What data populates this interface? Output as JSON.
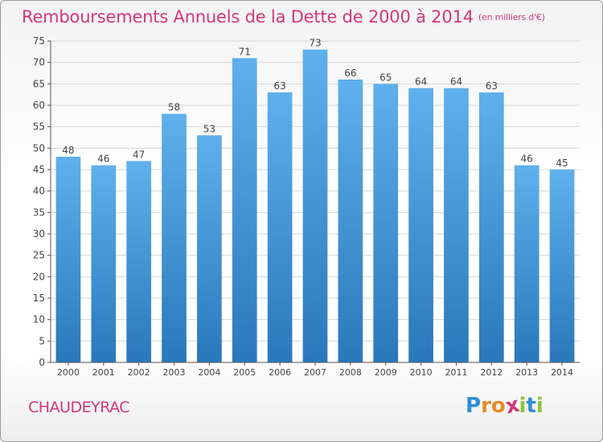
{
  "chart_data": {
    "type": "bar",
    "title": "Remboursements Annuels de la Dette de 2000 à 2014",
    "subtitle": "(en milliers d'€)",
    "categories": [
      "2000",
      "2001",
      "2002",
      "2003",
      "2004",
      "2005",
      "2006",
      "2007",
      "2008",
      "2009",
      "2010",
      "2011",
      "2012",
      "2013",
      "2014"
    ],
    "values": [
      48,
      46,
      47,
      58,
      53,
      71,
      63,
      73,
      66,
      65,
      64,
      64,
      63,
      46,
      45
    ],
    "ylim": [
      0,
      75
    ],
    "yticks": [
      0,
      5,
      10,
      15,
      20,
      25,
      30,
      35,
      40,
      45,
      50,
      55,
      60,
      65,
      70,
      75
    ],
    "grid": true,
    "bar_color_top": "#5fb0ec",
    "bar_color_bottom": "#2a78bb"
  },
  "footer": {
    "commune": "CHAUDEYRAC",
    "logo_letters": [
      {
        "ch": "P",
        "color": "#2d8fd6"
      },
      {
        "ch": "r",
        "color": "#e8892a"
      },
      {
        "ch": "o",
        "color": "#e8892a"
      },
      {
        "ch": "x",
        "color": "#d4377a"
      },
      {
        "ch": "i",
        "color": "#8cc63f"
      },
      {
        "ch": "t",
        "color": "#2d8fd6"
      },
      {
        "ch": "i",
        "color": "#8cc63f"
      }
    ]
  }
}
